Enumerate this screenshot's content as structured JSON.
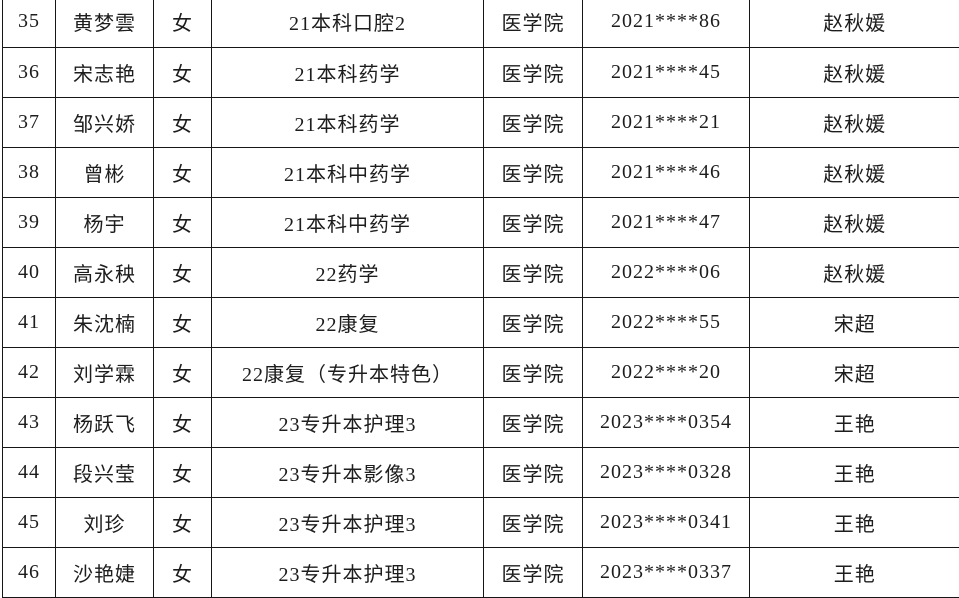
{
  "colors": {
    "background": "#ffffff",
    "border": "#161616",
    "text": "#1d1d1d"
  },
  "table": {
    "columns": [
      {
        "key": "index",
        "name": "row-number-cell"
      },
      {
        "key": "name",
        "name": "student-name-cell"
      },
      {
        "key": "gender",
        "name": "gender-cell"
      },
      {
        "key": "class",
        "name": "class-cell"
      },
      {
        "key": "college",
        "name": "college-cell"
      },
      {
        "key": "student_id",
        "name": "student-id-cell"
      },
      {
        "key": "counselor",
        "name": "counselor-cell"
      }
    ],
    "rows": [
      {
        "index": "35",
        "name": "黄梦雲",
        "gender": "女",
        "class": "21本科口腔2",
        "college": "医学院",
        "student_id": "2021****86",
        "counselor": "赵秋媛"
      },
      {
        "index": "36",
        "name": "宋志艳",
        "gender": "女",
        "class": "21本科药学",
        "college": "医学院",
        "student_id": "2021****45",
        "counselor": "赵秋媛"
      },
      {
        "index": "37",
        "name": "邹兴娇",
        "gender": "女",
        "class": "21本科药学",
        "college": "医学院",
        "student_id": "2021****21",
        "counselor": "赵秋媛"
      },
      {
        "index": "38",
        "name": "曾彬",
        "gender": "女",
        "class": "21本科中药学",
        "college": "医学院",
        "student_id": "2021****46",
        "counselor": "赵秋媛"
      },
      {
        "index": "39",
        "name": "杨宇",
        "gender": "女",
        "class": "21本科中药学",
        "college": "医学院",
        "student_id": "2021****47",
        "counselor": "赵秋媛"
      },
      {
        "index": "40",
        "name": "高永秧",
        "gender": "女",
        "class": "22药学",
        "college": "医学院",
        "student_id": "2022****06",
        "counselor": "赵秋媛"
      },
      {
        "index": "41",
        "name": "朱沈楠",
        "gender": "女",
        "class": "22康复",
        "college": "医学院",
        "student_id": "2022****55",
        "counselor": "宋超"
      },
      {
        "index": "42",
        "name": "刘学霖",
        "gender": "女",
        "class": "22康复（专升本特色）",
        "college": "医学院",
        "student_id": "2022****20",
        "counselor": "宋超"
      },
      {
        "index": "43",
        "name": "杨跃飞",
        "gender": "女",
        "class": "23专升本护理3",
        "college": "医学院",
        "student_id": "2023****0354",
        "counselor": "王艳"
      },
      {
        "index": "44",
        "name": "段兴莹",
        "gender": "女",
        "class": "23专升本影像3",
        "college": "医学院",
        "student_id": "2023****0328",
        "counselor": "王艳"
      },
      {
        "index": "45",
        "name": "刘珍",
        "gender": "女",
        "class": "23专升本护理3",
        "college": "医学院",
        "student_id": "2023****0341",
        "counselor": "王艳"
      },
      {
        "index": "46",
        "name": "沙艳婕",
        "gender": "女",
        "class": "23专升本护理3",
        "college": "医学院",
        "student_id": "2023****0337",
        "counselor": "王艳"
      }
    ]
  }
}
